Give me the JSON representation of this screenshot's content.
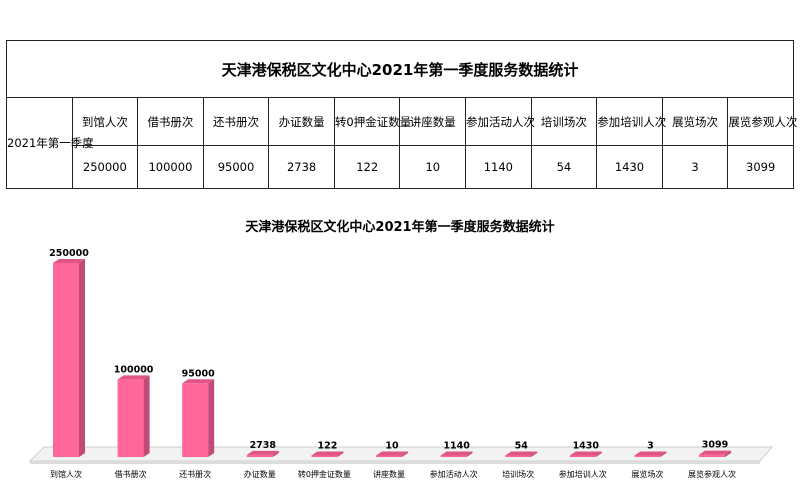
{
  "table": {
    "title": "天津港保税区文化中心2021年第一季度服务数据统计",
    "row_label": "2021年第一季度",
    "headers": [
      "到馆人次",
      "借书册次",
      "还书册次",
      "办证数量",
      "转0押金证数量",
      "讲座数量",
      "参加活动人次",
      "培训场次",
      "参加培训人次",
      "展览场次",
      "展览参观人次"
    ],
    "values": [
      "250000",
      "100000",
      "95000",
      "2738",
      "122",
      "10",
      "1140",
      "54",
      "1430",
      "3",
      "3099"
    ]
  },
  "chart_data": {
    "type": "bar",
    "title": "天津港保税区文化中心2021年第一季度服务数据统计",
    "categories": [
      "到馆人次",
      "借书册次",
      "还书册次",
      "办证数量",
      "转0押金证数量",
      "讲座数量",
      "参加活动人次",
      "培训场次",
      "参加培训人次",
      "展览场次",
      "展览参观人次"
    ],
    "values": [
      250000,
      100000,
      95000,
      2738,
      122,
      10,
      1140,
      54,
      1430,
      3,
      3099
    ],
    "xlabel": "",
    "ylabel": "",
    "ylim": [
      0,
      250000
    ],
    "grid": false,
    "legend": "none",
    "bar_color": "#ff6699",
    "bar_side_color": "#c24a78",
    "bar_top_color": "#e05588"
  }
}
